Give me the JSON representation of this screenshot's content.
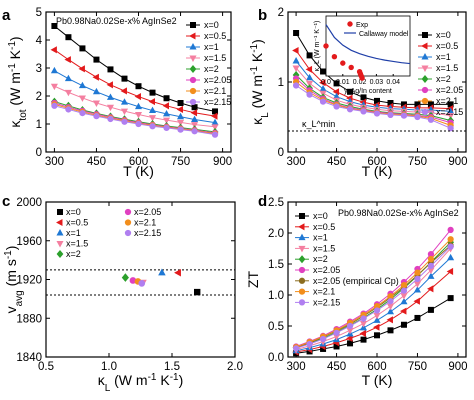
{
  "chart_data": [
    {
      "id": "a",
      "panel_label": "a",
      "type": "line",
      "xlabel": "T (K)",
      "ylabel": "κ_tot (W m⁻¹ K⁻¹)",
      "xlim": [
        270,
        930
      ],
      "ylim": [
        0,
        5
      ],
      "xticks": [
        300,
        450,
        600,
        750,
        900
      ],
      "yticks": [
        0,
        1,
        2,
        3,
        4,
        5
      ],
      "annotation": "Pb0.98Na0.02Se-x% AgInSe2",
      "legend_position": "right",
      "x": [
        300,
        350,
        400,
        450,
        500,
        550,
        600,
        650,
        700,
        750,
        800,
        873
      ],
      "series": [
        {
          "name": "x=0",
          "color": "#000000",
          "marker": "square",
          "values": [
            4.5,
            4.1,
            3.7,
            3.3,
            2.95,
            2.62,
            2.35,
            2.12,
            1.92,
            1.75,
            1.6,
            1.45
          ]
        },
        {
          "name": "x=0.5",
          "color": "#e31a1c",
          "marker": "tri-left",
          "values": [
            3.65,
            3.3,
            2.97,
            2.67,
            2.4,
            2.18,
            1.98,
            1.8,
            1.65,
            1.52,
            1.4,
            1.28
          ]
        },
        {
          "name": "x=1",
          "color": "#1f78d4",
          "marker": "tri-up",
          "values": [
            2.9,
            2.62,
            2.37,
            2.15,
            1.95,
            1.78,
            1.62,
            1.48,
            1.36,
            1.26,
            1.16,
            1.05
          ]
        },
        {
          "name": "x=1.5",
          "color": "#f47fa0",
          "marker": "tri-down",
          "values": [
            2.35,
            2.13,
            1.93,
            1.75,
            1.6,
            1.46,
            1.34,
            1.23,
            1.14,
            1.06,
            0.98,
            0.9
          ]
        },
        {
          "name": "x=2",
          "color": "#2ca02c",
          "marker": "diamond",
          "values": [
            1.8,
            1.65,
            1.5,
            1.38,
            1.27,
            1.17,
            1.08,
            1.0,
            0.93,
            0.87,
            0.81,
            0.72
          ]
        },
        {
          "name": "x=2.05",
          "color": "#e040c0",
          "marker": "circle",
          "values": [
            1.75,
            1.6,
            1.47,
            1.35,
            1.24,
            1.14,
            1.05,
            0.97,
            0.9,
            0.84,
            0.78,
            0.68
          ]
        },
        {
          "name": "x=2.1",
          "color": "#f28e1c",
          "marker": "circle",
          "values": [
            1.7,
            1.56,
            1.43,
            1.31,
            1.21,
            1.11,
            1.02,
            0.95,
            0.88,
            0.82,
            0.76,
            0.65
          ]
        },
        {
          "name": "x=2.15",
          "color": "#b07ff0",
          "marker": "circle",
          "values": [
            1.65,
            1.52,
            1.39,
            1.28,
            1.18,
            1.08,
            1.0,
            0.92,
            0.86,
            0.8,
            0.74,
            0.62
          ]
        }
      ]
    },
    {
      "id": "b",
      "panel_label": "b",
      "type": "line",
      "xlabel": "T (K)",
      "ylabel": "κ_L (W m⁻¹ K⁻¹)",
      "xlim": [
        270,
        930
      ],
      "ylim": [
        0,
        2
      ],
      "xticks": [
        300,
        450,
        600,
        750,
        900
      ],
      "yticks": [
        0,
        1,
        2
      ],
      "annotation": "κ_L^min",
      "kmin": 0.3,
      "legend_position": "right",
      "x": [
        300,
        350,
        400,
        450,
        500,
        550,
        600,
        650,
        700,
        750,
        800,
        873
      ],
      "series": [
        {
          "name": "x=0",
          "color": "#000000",
          "marker": "square",
          "values": [
            1.7,
            1.38,
            1.15,
            0.98,
            0.86,
            0.78,
            0.73,
            0.7,
            0.68,
            0.68,
            0.68,
            0.68
          ]
        },
        {
          "name": "x=0.5",
          "color": "#e31a1c",
          "marker": "tri-left",
          "values": [
            1.45,
            1.18,
            0.99,
            0.86,
            0.77,
            0.71,
            0.67,
            0.65,
            0.64,
            0.63,
            0.63,
            0.62
          ]
        },
        {
          "name": "x=1",
          "color": "#1f78d4",
          "marker": "tri-up",
          "values": [
            1.3,
            1.06,
            0.9,
            0.79,
            0.72,
            0.67,
            0.64,
            0.62,
            0.61,
            0.6,
            0.6,
            0.58
          ]
        },
        {
          "name": "x=1.5",
          "color": "#f47fa0",
          "marker": "tri-down",
          "values": [
            1.2,
            0.98,
            0.84,
            0.74,
            0.68,
            0.64,
            0.61,
            0.59,
            0.58,
            0.57,
            0.56,
            0.52
          ]
        },
        {
          "name": "x=2",
          "color": "#2ca02c",
          "marker": "diamond",
          "values": [
            1.1,
            0.91,
            0.78,
            0.7,
            0.65,
            0.61,
            0.58,
            0.56,
            0.55,
            0.54,
            0.52,
            0.45
          ]
        },
        {
          "name": "x=2.05",
          "color": "#e040c0",
          "marker": "circle",
          "values": [
            1.05,
            0.88,
            0.76,
            0.68,
            0.63,
            0.6,
            0.57,
            0.55,
            0.54,
            0.52,
            0.5,
            0.42
          ]
        },
        {
          "name": "x=2.1",
          "color": "#f28e1c",
          "marker": "circle",
          "values": [
            1.0,
            0.85,
            0.74,
            0.67,
            0.62,
            0.59,
            0.56,
            0.54,
            0.53,
            0.51,
            0.48,
            0.38
          ]
        },
        {
          "name": "x=2.15",
          "color": "#b07ff0",
          "marker": "circle",
          "values": [
            0.95,
            0.82,
            0.72,
            0.65,
            0.61,
            0.58,
            0.55,
            0.53,
            0.52,
            0.5,
            0.46,
            0.34
          ]
        }
      ],
      "inset": {
        "type": "scatter",
        "xlabel": "y, Ag/In content",
        "ylabel": "κ_L (W m⁻¹ K⁻¹)",
        "xlim": [
          0,
          0.05
        ],
        "ylim": [
          1.0,
          2.4
        ],
        "xticks": [
          0.0,
          0.01,
          0.02,
          0.03,
          0.04
        ],
        "tick_labels": [
          "0.0",
          "0.01",
          "0.02",
          "0.03",
          "0.04"
        ],
        "legend": [
          "Exp",
          "Callaway model"
        ],
        "model_x": [
          0.0,
          0.005,
          0.01,
          0.015,
          0.02,
          0.025,
          0.03,
          0.035,
          0.04,
          0.045,
          0.05
        ],
        "model_y": [
          2.2,
          1.9,
          1.72,
          1.6,
          1.52,
          1.46,
          1.41,
          1.37,
          1.34,
          1.31,
          1.29
        ],
        "exp_x": [
          0.0,
          0.005,
          0.01,
          0.015,
          0.02,
          0.0205,
          0.021,
          0.0215
        ],
        "exp_y": [
          1.7,
          1.45,
          1.3,
          1.2,
          1.1,
          1.05,
          1.0,
          0.95
        ]
      }
    },
    {
      "id": "c",
      "panel_label": "c",
      "type": "scatter",
      "xlabel": "κ_L (W m⁻¹ K⁻¹)",
      "ylabel": "v_avg (m s⁻¹)",
      "xlim": [
        0.5,
        2.0
      ],
      "ylim": [
        1840,
        2000
      ],
      "xticks": [
        0.5,
        1.0,
        1.5,
        2.0
      ],
      "tick_labels_x": [
        "0.5",
        "1.0",
        "1.5",
        "2.0"
      ],
      "yticks": [
        1840,
        1880,
        1920,
        1960,
        2000
      ],
      "hlines": [
        1930,
        1904
      ],
      "legend_position": "top",
      "points": [
        {
          "name": "x=0",
          "color": "#000000",
          "marker": "square",
          "x": 1.7,
          "y": 1907
        },
        {
          "name": "x=0.5",
          "color": "#e31a1c",
          "marker": "tri-left",
          "x": 1.55,
          "y": 1927
        },
        {
          "name": "x=1",
          "color": "#1f78d4",
          "marker": "tri-up",
          "x": 1.42,
          "y": 1927
        },
        {
          "name": "x=1.5",
          "color": "#f47fa0",
          "marker": "tri-down",
          "x": 1.27,
          "y": 1917
        },
        {
          "name": "x=2",
          "color": "#2ca02c",
          "marker": "diamond",
          "x": 1.13,
          "y": 1922
        },
        {
          "name": "x=2.05",
          "color": "#e040c0",
          "marker": "circle",
          "x": 1.19,
          "y": 1919
        },
        {
          "name": "x=2.1",
          "color": "#f28e1c",
          "marker": "circle",
          "x": 1.23,
          "y": 1918
        },
        {
          "name": "x=2.15",
          "color": "#b07ff0",
          "marker": "circle",
          "x": 1.26,
          "y": 1916
        }
      ]
    },
    {
      "id": "d",
      "panel_label": "d",
      "type": "line",
      "xlabel": "T (K)",
      "ylabel": "ZT",
      "xlim": [
        270,
        930
      ],
      "ylim": [
        0,
        2.5
      ],
      "xticks": [
        300,
        450,
        600,
        750,
        900
      ],
      "yticks": [
        0.0,
        0.5,
        1.0,
        1.5,
        2.0,
        2.5
      ],
      "tick_labels_y": [
        "0.0",
        "0.5",
        "1.0",
        "1.5",
        "2.0",
        "2.5"
      ],
      "annotation": "Pb0.98Na0.02Se-x% AgInSe2",
      "legend_position": "left",
      "x": [
        300,
        350,
        400,
        450,
        500,
        550,
        600,
        650,
        700,
        750,
        800,
        873
      ],
      "series": [
        {
          "name": "x=0",
          "color": "#000000",
          "marker": "square",
          "values": [
            0.06,
            0.09,
            0.13,
            0.17,
            0.22,
            0.28,
            0.35,
            0.43,
            0.52,
            0.63,
            0.76,
            0.95
          ]
        },
        {
          "name": "x=0.5",
          "color": "#e31a1c",
          "marker": "tri-left",
          "values": [
            0.08,
            0.12,
            0.17,
            0.23,
            0.3,
            0.38,
            0.48,
            0.6,
            0.74,
            0.9,
            1.1,
            1.38
          ]
        },
        {
          "name": "x=1",
          "color": "#1f78d4",
          "marker": "tri-up",
          "values": [
            0.1,
            0.15,
            0.21,
            0.28,
            0.37,
            0.47,
            0.59,
            0.73,
            0.89,
            1.08,
            1.3,
            1.6
          ]
        },
        {
          "name": "x=1.5",
          "color": "#f47fa0",
          "marker": "tri-down",
          "values": [
            0.12,
            0.18,
            0.25,
            0.33,
            0.43,
            0.54,
            0.67,
            0.82,
            0.99,
            1.18,
            1.4,
            1.75
          ]
        },
        {
          "name": "x=2",
          "color": "#2ca02c",
          "marker": "diamond",
          "values": [
            0.15,
            0.22,
            0.3,
            0.4,
            0.51,
            0.63,
            0.77,
            0.93,
            1.11,
            1.31,
            1.53,
            1.85
          ]
        },
        {
          "name": "x=2.05",
          "color": "#e040c0",
          "marker": "circle",
          "values": [
            0.17,
            0.25,
            0.34,
            0.45,
            0.57,
            0.7,
            0.85,
            1.02,
            1.21,
            1.42,
            1.66,
            2.05
          ]
        },
        {
          "name": "x=2.05 (empirical Cp)",
          "color": "#8c6d1f",
          "marker": "circle",
          "values": [
            0.15,
            0.23,
            0.32,
            0.42,
            0.53,
            0.66,
            0.8,
            0.96,
            1.13,
            1.32,
            1.52,
            1.8
          ]
        },
        {
          "name": "x=2.1",
          "color": "#f28e1c",
          "marker": "circle",
          "values": [
            0.16,
            0.24,
            0.33,
            0.43,
            0.55,
            0.68,
            0.82,
            0.98,
            1.16,
            1.36,
            1.58,
            1.9
          ]
        },
        {
          "name": "x=2.15",
          "color": "#b07ff0",
          "marker": "circle",
          "values": [
            0.14,
            0.21,
            0.29,
            0.39,
            0.5,
            0.62,
            0.75,
            0.9,
            1.07,
            1.26,
            1.47,
            1.78
          ]
        }
      ]
    }
  ]
}
